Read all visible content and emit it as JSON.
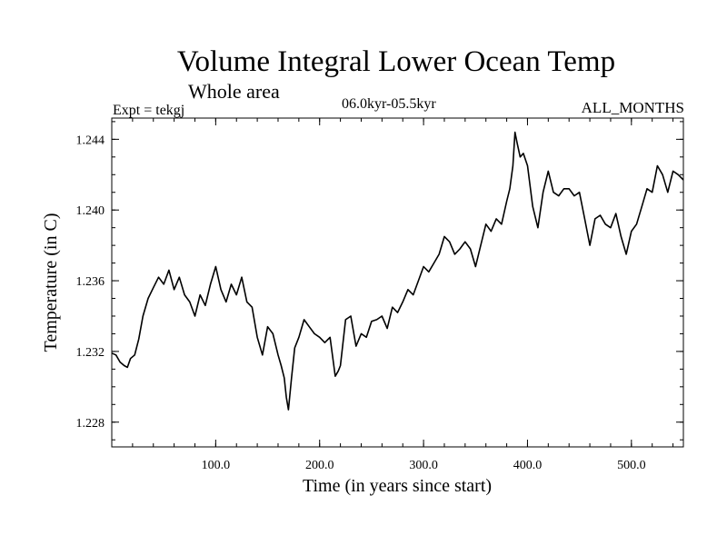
{
  "header": {
    "title": "Volume Integral Lower Ocean Temp",
    "subtitle": "Whole area",
    "experiment": "Expt = tekgj",
    "period": "06.0kyr-05.5kyr",
    "months": "ALL_MONTHS"
  },
  "chart_data": {
    "type": "line",
    "title": "Volume Integral Lower Ocean Temp",
    "xlabel": "Time (in years since start)",
    "ylabel": "Temperature (in C)",
    "xlim": [
      0,
      550
    ],
    "ylim": [
      1.2266,
      1.2452
    ],
    "xticks": [
      100,
      200,
      300,
      400,
      500
    ],
    "xtick_labels": [
      "100.0",
      "200.0",
      "300.0",
      "400.0",
      "500.0"
    ],
    "xminor_step": 20,
    "yticks": [
      1.228,
      1.232,
      1.236,
      1.24,
      1.244
    ],
    "ytick_labels": [
      "1.228",
      "1.232",
      "1.236",
      "1.240",
      "1.244"
    ],
    "yminor_step": 0.001,
    "line_color": "#000000",
    "series": [
      {
        "name": "Volume Integral Lower Ocean Temp",
        "x": [
          0,
          4,
          8,
          12,
          15,
          18,
          22,
          26,
          30,
          35,
          40,
          45,
          50,
          55,
          60,
          65,
          70,
          75,
          80,
          85,
          90,
          95,
          100,
          105,
          110,
          115,
          120,
          125,
          130,
          135,
          140,
          145,
          150,
          155,
          160,
          163,
          166,
          168,
          170,
          173,
          176,
          180,
          185,
          190,
          195,
          200,
          205,
          210,
          215,
          218,
          220,
          225,
          230,
          235,
          240,
          245,
          250,
          255,
          260,
          265,
          270,
          275,
          280,
          285,
          290,
          295,
          300,
          305,
          310,
          315,
          320,
          325,
          330,
          335,
          340,
          345,
          350,
          355,
          360,
          365,
          370,
          375,
          380,
          383,
          386,
          388,
          390,
          393,
          396,
          400,
          405,
          410,
          415,
          420,
          425,
          430,
          435,
          440,
          445,
          450,
          455,
          460,
          465,
          470,
          475,
          480,
          485,
          490,
          495,
          500,
          505,
          510,
          515,
          520,
          525,
          530,
          535,
          540,
          545,
          550
        ],
        "y": [
          1.2319,
          1.2318,
          1.2314,
          1.2312,
          1.2311,
          1.2316,
          1.2318,
          1.2327,
          1.234,
          1.235,
          1.2356,
          1.2362,
          1.2358,
          1.2366,
          1.2355,
          1.2362,
          1.2352,
          1.2348,
          1.234,
          1.2352,
          1.2346,
          1.2358,
          1.2368,
          1.2355,
          1.2348,
          1.2358,
          1.2352,
          1.2362,
          1.2348,
          1.2345,
          1.2328,
          1.2318,
          1.2334,
          1.233,
          1.2318,
          1.2312,
          1.2305,
          1.2294,
          1.2287,
          1.2305,
          1.2322,
          1.2328,
          1.2338,
          1.2334,
          1.233,
          1.2328,
          1.2325,
          1.2328,
          1.2306,
          1.2309,
          1.2312,
          1.2338,
          1.234,
          1.2323,
          1.233,
          1.2328,
          1.2337,
          1.2338,
          1.234,
          1.2333,
          1.2345,
          1.2342,
          1.2348,
          1.2355,
          1.2352,
          1.236,
          1.2368,
          1.2365,
          1.237,
          1.2375,
          1.2385,
          1.2382,
          1.2375,
          1.2378,
          1.2382,
          1.2378,
          1.2368,
          1.238,
          1.2392,
          1.2388,
          1.2395,
          1.2392,
          1.2405,
          1.2412,
          1.2425,
          1.2444,
          1.2438,
          1.243,
          1.2432,
          1.2425,
          1.2402,
          1.239,
          1.241,
          1.2422,
          1.241,
          1.2408,
          1.2412,
          1.2412,
          1.2408,
          1.241,
          1.2395,
          1.238,
          1.2395,
          1.2397,
          1.2392,
          1.239,
          1.2398,
          1.2385,
          1.2375,
          1.2388,
          1.2392,
          1.2402,
          1.2412,
          1.241,
          1.2425,
          1.242,
          1.241,
          1.2422,
          1.242,
          1.2417
        ]
      }
    ]
  }
}
